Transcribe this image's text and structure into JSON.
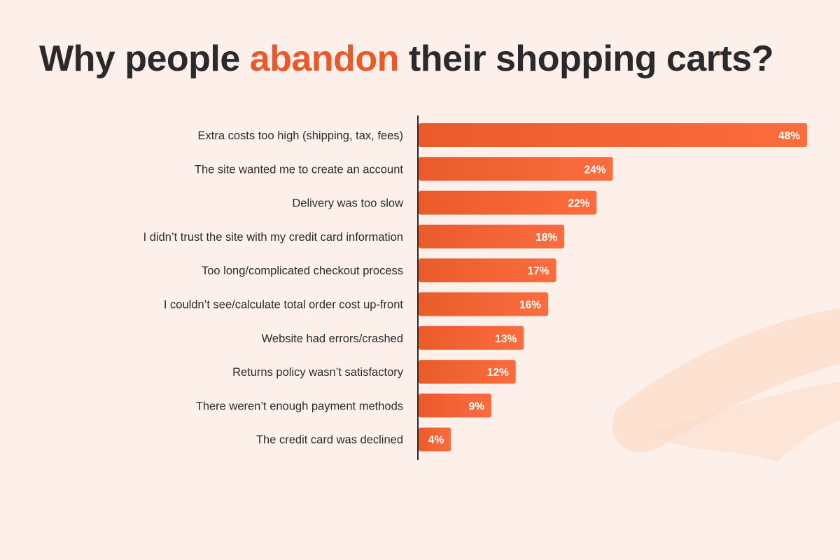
{
  "header": {
    "title_before": "Why people",
    "title_accent": "abandon",
    "title_after": "their shopping carts?"
  },
  "colors": {
    "background": "#fdf0ea",
    "bar_start": "#ea5b2c",
    "bar_end": "#fb6d3e",
    "accent_text": "#e9592a",
    "label_text": "#2a2a2c",
    "decor_stroke": "#fcdcc8"
  },
  "chart_data": {
    "type": "bar",
    "orientation": "horizontal",
    "title": "Why people abandon their shopping carts?",
    "xlabel": "",
    "ylabel": "",
    "xlim": [
      0,
      48
    ],
    "grid": false,
    "legend": "none",
    "value_suffix": "%",
    "categories": [
      "Extra costs too high (shipping, tax, fees)",
      "The site wanted me to create an account",
      "Delivery was too slow",
      "I didn’t trust the site with my credit card information",
      "Too long/complicated checkout process",
      "I couldn’t see/calculate total order cost up-front",
      "Website had errors/crashed",
      "Returns policy wasn’t satisfactory",
      "There weren’t enough payment methods",
      "The credit card was declined"
    ],
    "values": [
      48,
      24,
      22,
      18,
      17,
      16,
      13,
      12,
      9,
      4
    ]
  }
}
